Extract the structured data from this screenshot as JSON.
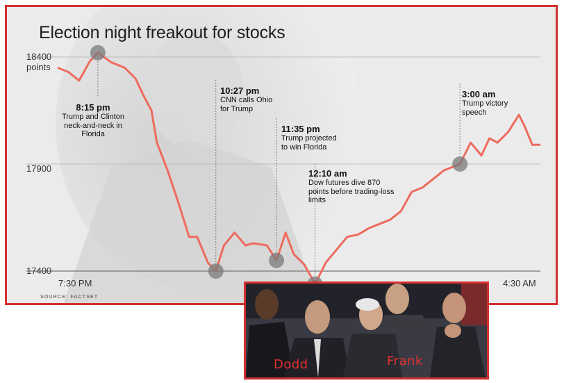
{
  "chart_data": {
    "type": "line",
    "title": "Election night freakout for stocks",
    "yticks": [
      "18400\npoints",
      "17900",
      "17400"
    ],
    "ytick_values": [
      18400,
      17900,
      17400
    ],
    "xticks": [
      "7:30 PM",
      "4:30 AM"
    ],
    "ylim": [
      17400,
      18400
    ],
    "xlim_hours": [
      19.5,
      28.5
    ],
    "grid": "horizontal",
    "source": "SOURCE: FACTSET",
    "series": [
      {
        "color": "#ee6b5e",
        "x": [
          19.5,
          19.7,
          19.9,
          20.1,
          20.25,
          20.5,
          20.75,
          20.95,
          21.1,
          21.25,
          21.35,
          21.55,
          21.75,
          21.95,
          22.1,
          22.3,
          22.45,
          22.6,
          22.8,
          23.0,
          23.15,
          23.4,
          23.58,
          23.75,
          23.9,
          24.1,
          24.3,
          24.5,
          24.7,
          24.9,
          25.1,
          25.3,
          25.5,
          25.7,
          25.9,
          26.1,
          26.3,
          26.5,
          26.7,
          26.9,
          27.0,
          27.2,
          27.4,
          27.55,
          27.7,
          27.9,
          28.1,
          28.2,
          28.35,
          28.5
        ],
        "y": [
          18350,
          18330,
          18290,
          18380,
          18420,
          18375,
          18350,
          18300,
          18220,
          18150,
          18000,
          17870,
          17720,
          17560,
          17560,
          17440,
          17400,
          17520,
          17580,
          17520,
          17530,
          17520,
          17450,
          17580,
          17480,
          17430,
          17340,
          17440,
          17500,
          17560,
          17570,
          17600,
          17620,
          17640,
          17680,
          17770,
          17790,
          17830,
          17870,
          17890,
          17900,
          18000,
          17940,
          18020,
          18000,
          18050,
          18130,
          18080,
          17990,
          17990
        ]
      }
    ],
    "annotations": [
      {
        "time": "8:15 pm",
        "text": "Trump and Clinton\nneck-and-neck in\nFlorida",
        "x": 20.25,
        "y": 18420
      },
      {
        "time": "10:27 pm",
        "text": "CNN calls Ohio\nfor Trump",
        "x": 22.45,
        "y": 17400
      },
      {
        "time": "11:35 pm",
        "text": "Trump projected\nto win Florida",
        "x": 23.58,
        "y": 17450
      },
      {
        "time": "12:10 am",
        "text": "Dow futures dive 870\npoints before trading-loss\nlimits",
        "x": 24.3,
        "y": 17340
      },
      {
        "time": "3:00 am",
        "text": "Trump victory\nspeech",
        "x": 27.0,
        "y": 17900
      }
    ]
  },
  "photo": {
    "labels": [
      "Dodd",
      "Frank"
    ]
  }
}
